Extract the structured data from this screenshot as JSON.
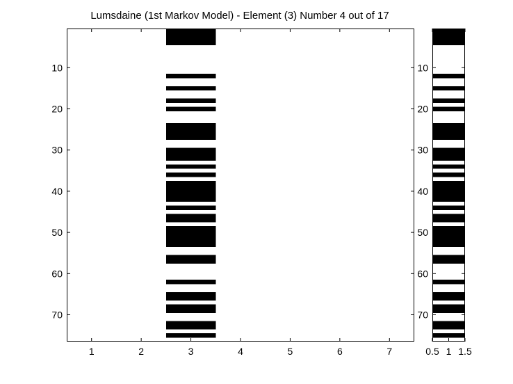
{
  "chart_data": [
    {
      "type": "heatmap",
      "title": "Lumsdaine (1st Markov Model) - Element (3) Number 4 out of 17",
      "xlim": [
        0.5,
        7.5
      ],
      "ylim": [
        0.5,
        76.5
      ],
      "y_reversed": true,
      "xticks": [
        1,
        2,
        3,
        4,
        5,
        6,
        7
      ],
      "xtick_labels": [
        "1",
        "2",
        "3",
        "4",
        "5",
        "6",
        "7"
      ],
      "yticks": [
        10,
        20,
        30,
        40,
        50,
        60,
        70
      ],
      "ytick_labels": [
        "10",
        "20",
        "30",
        "40",
        "50",
        "60",
        "70"
      ],
      "filled_column": 3,
      "filled_rows": [
        1,
        2,
        3,
        4,
        12,
        15,
        18,
        20,
        24,
        25,
        26,
        27,
        30,
        31,
        32,
        34,
        36,
        38,
        39,
        40,
        41,
        42,
        44,
        46,
        47,
        49,
        50,
        51,
        52,
        53,
        56,
        57,
        62,
        65,
        66,
        68,
        69,
        72,
        73,
        75
      ],
      "colors": {
        "filled": "#000000",
        "empty": "#ffffff"
      }
    },
    {
      "type": "heatmap",
      "xlim": [
        0.5,
        1.5
      ],
      "ylim": [
        0.5,
        76.5
      ],
      "y_reversed": true,
      "xticks": [
        0.5,
        1,
        1.5
      ],
      "xtick_labels": [
        "0.5",
        "1",
        "1.5"
      ],
      "yticks": [
        10,
        20,
        30,
        40,
        50,
        60,
        70
      ],
      "ytick_labels": [
        "10",
        "20",
        "30",
        "40",
        "50",
        "60",
        "70"
      ],
      "filled_column": 1,
      "filled_rows": [
        1,
        2,
        3,
        4,
        12,
        15,
        18,
        20,
        24,
        25,
        26,
        27,
        30,
        31,
        32,
        34,
        36,
        38,
        39,
        40,
        41,
        42,
        44,
        46,
        47,
        49,
        50,
        51,
        52,
        53,
        56,
        57,
        62,
        65,
        66,
        68,
        69,
        72,
        73,
        75
      ],
      "colors": {
        "filled": "#000000",
        "empty": "#ffffff"
      }
    }
  ]
}
